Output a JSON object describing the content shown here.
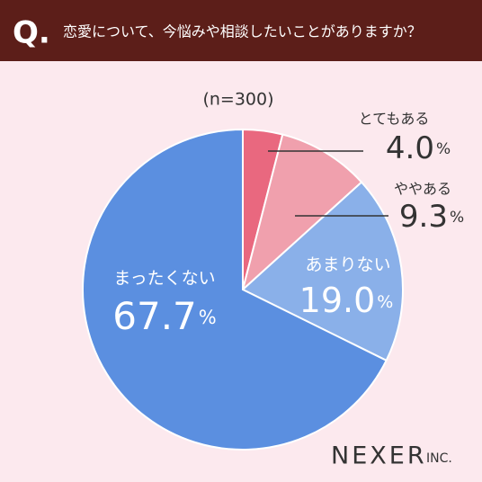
{
  "chart_data": {
    "type": "pie",
    "question_marker": "Q.",
    "title": "恋愛について、今悩みや相談したいことがありますか？",
    "subtitle": "(n=300)",
    "categories": [
      "とてもある",
      "ややある",
      "あまりない",
      "まったくない"
    ],
    "values": [
      4.0,
      9.3,
      19.0,
      67.7
    ],
    "value_labels": [
      "4.0",
      "9.3",
      "19.0",
      "67.7"
    ],
    "unit": "%",
    "colors": [
      "#e9687f",
      "#f0a0ad",
      "#8ab0e9",
      "#5b8fe0"
    ]
  },
  "brand": {
    "name": "NEXER",
    "suffix": "INC."
  }
}
